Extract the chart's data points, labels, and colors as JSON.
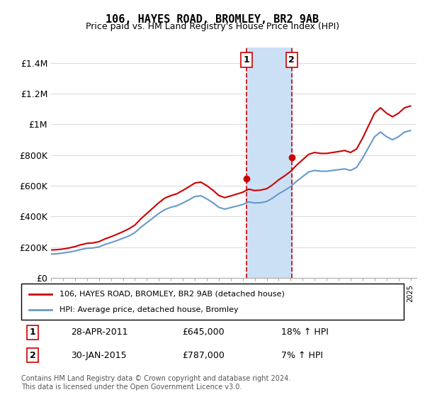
{
  "title": "106, HAYES ROAD, BROMLEY, BR2 9AB",
  "subtitle": "Price paid vs. HM Land Registry's House Price Index (HPI)",
  "xlabel": "",
  "ylabel": "",
  "ylim": [
    0,
    1500000
  ],
  "yticks": [
    0,
    200000,
    400000,
    600000,
    800000,
    1000000,
    1200000,
    1400000
  ],
  "ytick_labels": [
    "£0",
    "£200K",
    "£400K",
    "£600K",
    "£800K",
    "£1M",
    "£1.2M",
    "£1.4M"
  ],
  "sale1_year": 2011.32,
  "sale1_price": 645000,
  "sale1_label": "1",
  "sale2_year": 2015.08,
  "sale2_price": 787000,
  "sale2_label": "2",
  "legend_line1": "106, HAYES ROAD, BROMLEY, BR2 9AB (detached house)",
  "legend_line2": "HPI: Average price, detached house, Bromley",
  "table_row1": [
    "1",
    "28-APR-2011",
    "£645,000",
    "18% ↑ HPI"
  ],
  "table_row2": [
    "2",
    "30-JAN-2015",
    "£787,000",
    "7% ↑ HPI"
  ],
  "footer": "Contains HM Land Registry data © Crown copyright and database right 2024.\nThis data is licensed under the Open Government Licence v3.0.",
  "line_color_red": "#cc0000",
  "line_color_blue": "#6699cc",
  "shade_color": "#cce0f5",
  "background_color": "#ffffff",
  "grid_color": "#dddddd",
  "hpi_data": {
    "years": [
      1995.0,
      1995.5,
      1996.0,
      1996.5,
      1997.0,
      1997.5,
      1998.0,
      1998.5,
      1999.0,
      1999.5,
      2000.0,
      2000.5,
      2001.0,
      2001.5,
      2002.0,
      2002.5,
      2003.0,
      2003.5,
      2004.0,
      2004.5,
      2005.0,
      2005.5,
      2006.0,
      2006.5,
      2007.0,
      2007.5,
      2008.0,
      2008.5,
      2009.0,
      2009.5,
      2010.0,
      2010.5,
      2011.0,
      2011.5,
      2012.0,
      2012.5,
      2013.0,
      2013.5,
      2014.0,
      2014.5,
      2015.0,
      2015.5,
      2016.0,
      2016.5,
      2017.0,
      2017.5,
      2018.0,
      2018.5,
      2019.0,
      2019.5,
      2020.0,
      2020.5,
      2021.0,
      2021.5,
      2022.0,
      2022.5,
      2023.0,
      2023.5,
      2024.0,
      2024.5,
      2025.0
    ],
    "values": [
      155000,
      157000,
      162000,
      168000,
      175000,
      185000,
      193000,
      195000,
      202000,
      218000,
      230000,
      243000,
      258000,
      273000,
      295000,
      330000,
      360000,
      390000,
      420000,
      445000,
      460000,
      470000,
      488000,
      508000,
      530000,
      535000,
      515000,
      490000,
      460000,
      448000,
      458000,
      468000,
      478000,
      495000,
      488000,
      490000,
      498000,
      520000,
      548000,
      570000,
      595000,
      630000,
      660000,
      690000,
      700000,
      695000,
      695000,
      700000,
      705000,
      710000,
      700000,
      720000,
      780000,
      850000,
      920000,
      950000,
      920000,
      900000,
      920000,
      950000,
      960000
    ]
  },
  "house_data": {
    "years": [
      1995.0,
      1995.5,
      1996.0,
      1996.5,
      1997.0,
      1997.5,
      1998.0,
      1998.5,
      1999.0,
      1999.5,
      2000.0,
      2000.5,
      2001.0,
      2001.5,
      2002.0,
      2002.5,
      2003.0,
      2003.5,
      2004.0,
      2004.5,
      2005.0,
      2005.5,
      2006.0,
      2006.5,
      2007.0,
      2007.5,
      2008.0,
      2008.5,
      2009.0,
      2009.5,
      2010.0,
      2010.5,
      2011.0,
      2011.5,
      2012.0,
      2012.5,
      2013.0,
      2013.5,
      2014.0,
      2014.5,
      2015.0,
      2015.5,
      2016.0,
      2016.5,
      2017.0,
      2017.5,
      2018.0,
      2018.5,
      2019.0,
      2019.5,
      2020.0,
      2020.5,
      2021.0,
      2021.5,
      2022.0,
      2022.5,
      2023.0,
      2023.5,
      2024.0,
      2024.5,
      2025.0
    ],
    "values": [
      182000,
      184000,
      188000,
      195000,
      204000,
      216000,
      225000,
      228000,
      236000,
      254000,
      268000,
      284000,
      301000,
      320000,
      344000,
      385000,
      420000,
      455000,
      490000,
      520000,
      536000,
      548000,
      570000,
      593000,
      618000,
      624000,
      601000,
      572000,
      537000,
      523000,
      534000,
      546000,
      558000,
      578000,
      569000,
      572000,
      581000,
      607000,
      639000,
      665000,
      694000,
      735000,
      770000,
      805000,
      817000,
      811000,
      811000,
      817000,
      823000,
      830000,
      817000,
      840000,
      910000,
      992000,
      1073000,
      1108000,
      1073000,
      1050000,
      1073000,
      1108000,
      1120000
    ]
  }
}
